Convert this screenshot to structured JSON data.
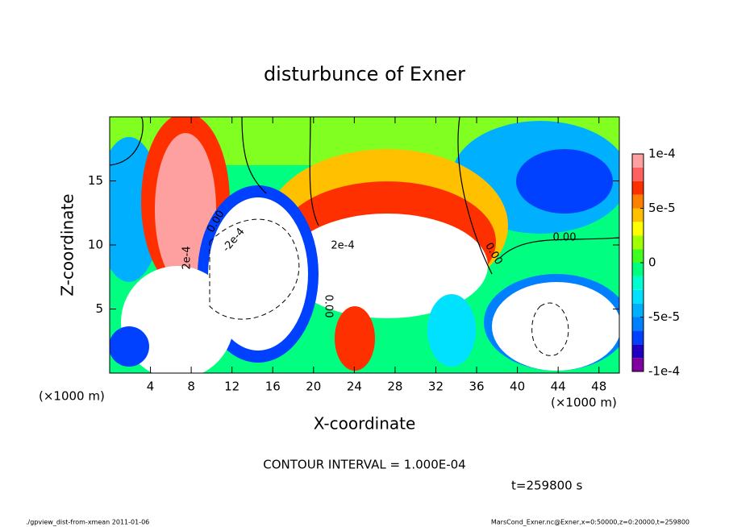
{
  "chart_data": {
    "type": "contour",
    "title": "disturbunce of Exner",
    "xlabel": "X-coordinate",
    "ylabel": "Z-coordinate",
    "x_unit": "(×1000 m)",
    "xlim": [
      0,
      50
    ],
    "ylim": [
      0,
      20
    ],
    "xticks": [
      4,
      8,
      12,
      16,
      20,
      24,
      28,
      32,
      36,
      40,
      44,
      48
    ],
    "yticks": [
      5,
      10,
      15
    ],
    "colorbar": {
      "lim": [
        -0.0001,
        0.0001
      ],
      "ticks": [
        {
          "value": 0.0001,
          "label": "1e-4"
        },
        {
          "value": 5e-05,
          "label": "5e-5"
        },
        0,
        {
          "value": -5e-05,
          "label": "-5e-5"
        },
        {
          "value": -0.0001,
          "label": "-1e-4"
        }
      ],
      "colors": [
        "#8000a0",
        "#2000c0",
        "#0040ff",
        "#0080ff",
        "#00b0ff",
        "#00e0ff",
        "#00ffd0",
        "#00ff80",
        "#40ff20",
        "#a0ff00",
        "#ffff00",
        "#ffc000",
        "#ff8000",
        "#ff3000",
        "#ff6060",
        "#ffa0a0"
      ]
    },
    "contour_labels": [
      "0.00",
      "-2e-4",
      "2e-4",
      "2e-4",
      "0.00",
      "0.00",
      "0.00"
    ],
    "contour_interval": "CONTOUR INTERVAL = 1.000E-04",
    "time_label": "t=259800 s",
    "footer_left": "./gpview_dist-from-xmean  2011-01-06",
    "footer_right": "MarsCond_Exner.nc@Exner,x=0:50000,z=0:20000,t=259800"
  }
}
